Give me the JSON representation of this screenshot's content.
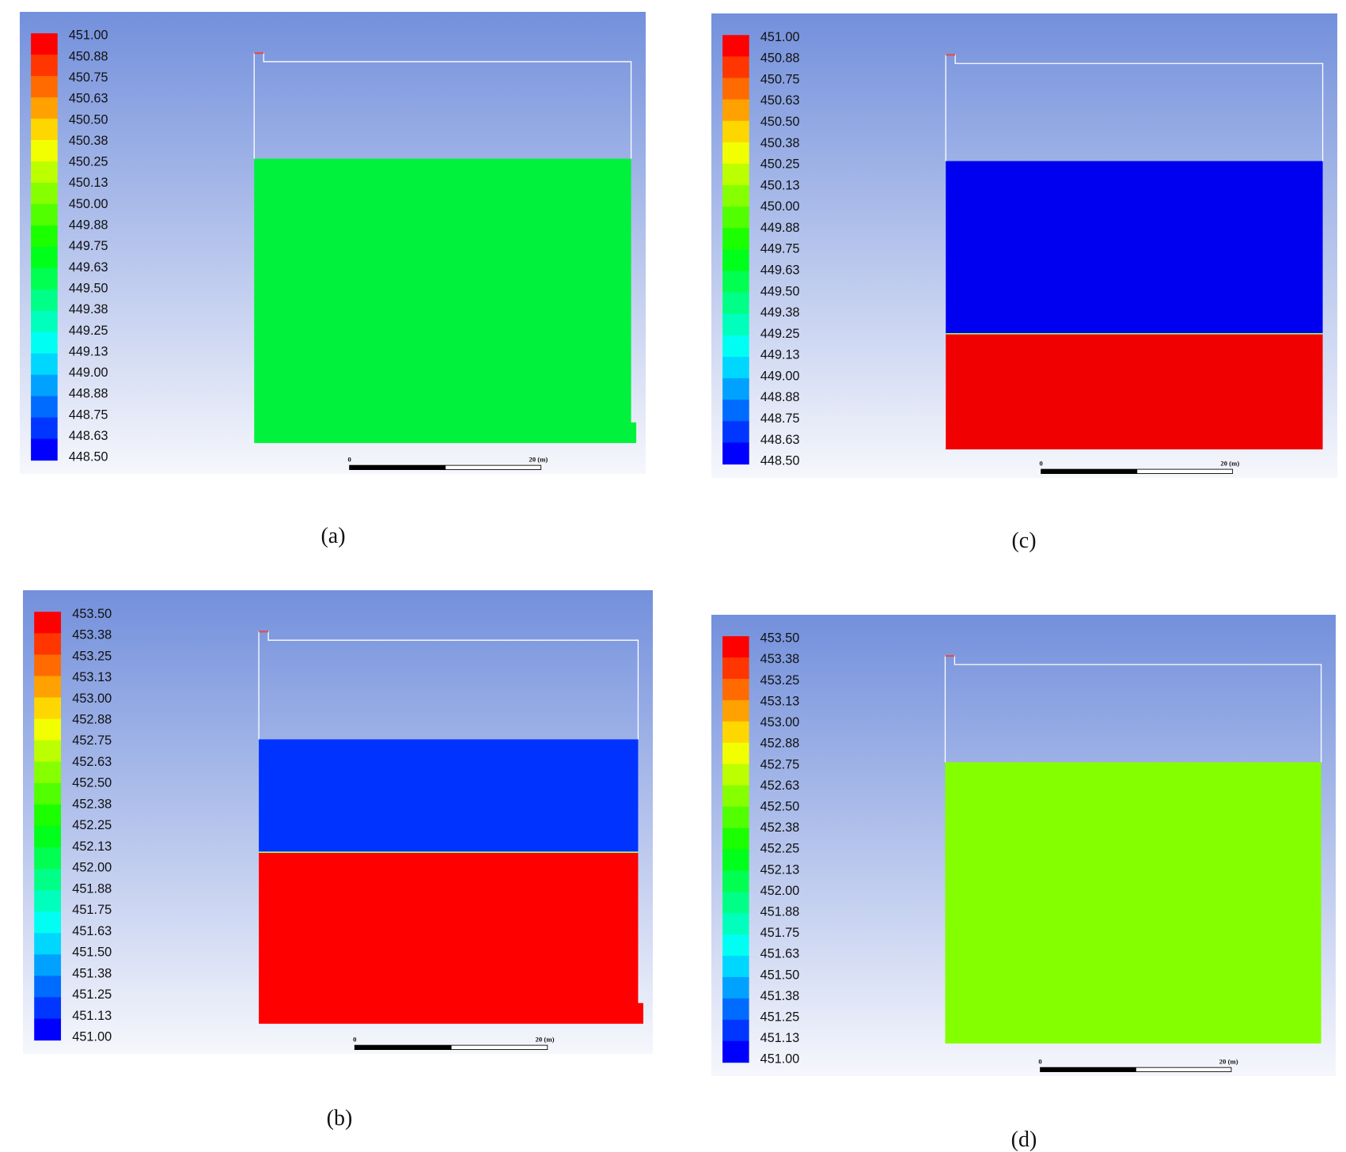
{
  "panels": [
    {
      "caption": "(a)",
      "legend_labels": [
        "451.00",
        "450.88",
        "450.75",
        "450.63",
        "450.50",
        "450.38",
        "450.25",
        "450.13",
        "450.00",
        "449.88",
        "449.75",
        "449.63",
        "449.50",
        "449.38",
        "449.25",
        "449.13",
        "449.00",
        "448.88",
        "448.75",
        "448.63",
        "448.50"
      ],
      "scale_labels": [
        "0",
        "20 (m)"
      ]
    },
    {
      "caption": "(c)",
      "legend_labels": [
        "451.00",
        "450.88",
        "450.75",
        "450.63",
        "450.50",
        "450.38",
        "450.25",
        "450.13",
        "450.00",
        "449.88",
        "449.75",
        "449.63",
        "449.50",
        "449.38",
        "449.25",
        "449.13",
        "449.00",
        "448.88",
        "448.75",
        "448.63",
        "448.50"
      ],
      "scale_labels": [
        "0",
        "20 (m)"
      ]
    },
    {
      "caption": "(b)",
      "legend_labels": [
        "453.50",
        "453.38",
        "453.25",
        "453.13",
        "453.00",
        "452.88",
        "452.75",
        "452.63",
        "452.50",
        "452.38",
        "452.25",
        "452.13",
        "452.00",
        "451.88",
        "451.75",
        "451.63",
        "451.50",
        "451.38",
        "451.25",
        "451.13",
        "451.00"
      ],
      "scale_labels": [
        "0",
        "20 (m)"
      ]
    },
    {
      "caption": "(d)",
      "legend_labels": [
        "453.50",
        "453.38",
        "453.25",
        "453.13",
        "453.00",
        "452.88",
        "452.75",
        "452.63",
        "452.50",
        "452.38",
        "452.25",
        "452.13",
        "452.00",
        "451.88",
        "451.75",
        "451.63",
        "451.50",
        "451.38",
        "451.25",
        "451.13",
        "451.00"
      ],
      "scale_labels": [
        "0",
        "20 (m)"
      ]
    }
  ]
}
